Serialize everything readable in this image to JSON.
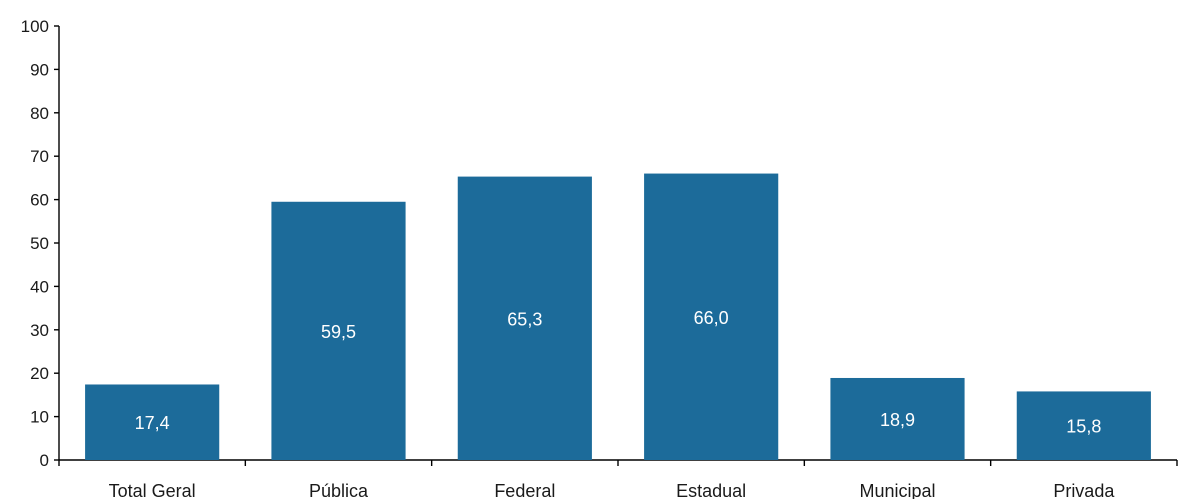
{
  "chart_data": {
    "type": "bar",
    "categories": [
      "Total Geral",
      "Pública",
      "Federal",
      "Estadual",
      "Municipal",
      "Privada"
    ],
    "values": [
      17.4,
      59.5,
      65.3,
      66.0,
      18.9,
      15.8
    ],
    "value_labels": [
      "17,4",
      "59,5",
      "65,3",
      "66,0",
      "18,9",
      "15,8"
    ],
    "y_ticks": [
      "0",
      "10",
      "20",
      "30",
      "40",
      "50",
      "60",
      "70",
      "80",
      "90",
      "100"
    ],
    "ylim": [
      0,
      100
    ],
    "grid": false,
    "legend": "none",
    "bar_color": "#1c6b9a"
  }
}
